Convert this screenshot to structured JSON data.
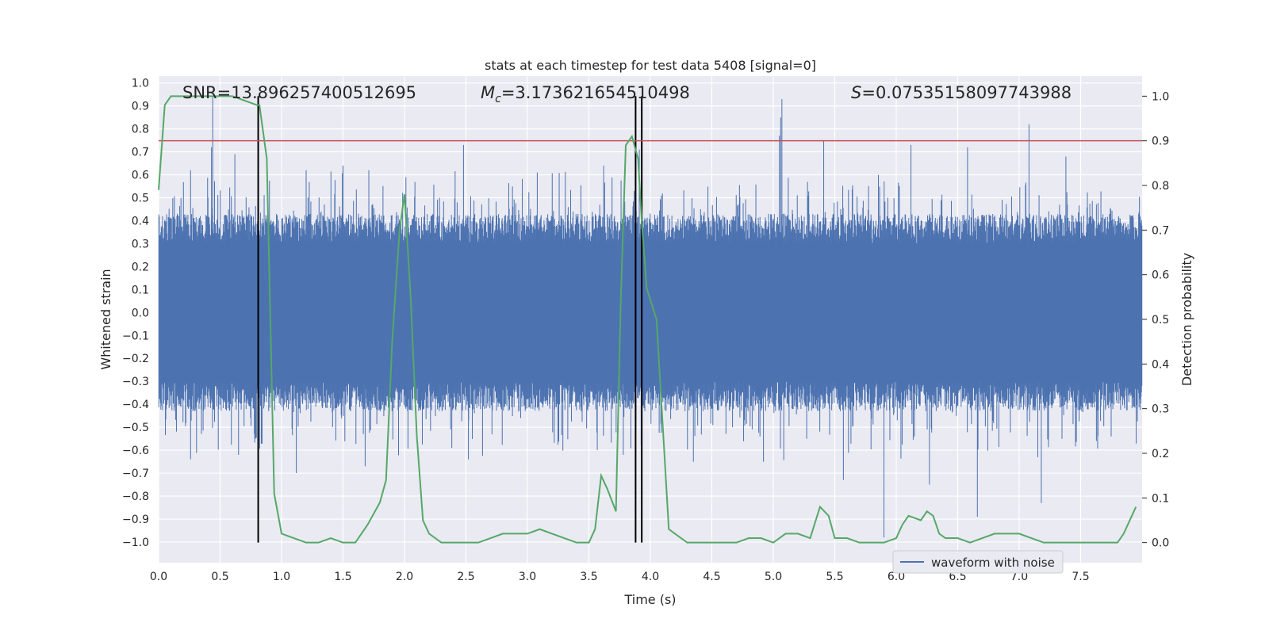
{
  "chart_data": {
    "type": "line",
    "title": "stats at each timestep for test data 5408 [signal=0]",
    "xlabel": "Time (s)",
    "ylabel": "Whitened strain",
    "y2label": "Detection probability",
    "xlim": [
      0,
      8
    ],
    "ylim": [
      -1.09,
      1.03
    ],
    "y2lim": [
      -0.045,
      1.045
    ],
    "xticks": [
      "0.0",
      "0.5",
      "1.0",
      "1.5",
      "2.0",
      "2.5",
      "3.0",
      "3.5",
      "4.0",
      "4.5",
      "5.0",
      "5.5",
      "6.0",
      "6.5",
      "7.0",
      "7.5"
    ],
    "yticks": [
      "1.0",
      "0.9",
      "0.8",
      "0.7",
      "0.6",
      "0.5",
      "0.4",
      "0.3",
      "0.2",
      "0.1",
      "0.0",
      "-0.1",
      "-0.2",
      "-0.3",
      "-0.4",
      "-0.5",
      "-0.6",
      "-0.7",
      "-0.8",
      "-0.9",
      "-1.0"
    ],
    "y2ticks": [
      "1.0",
      "0.9",
      "0.8",
      "0.7",
      "0.6",
      "0.5",
      "0.4",
      "0.3",
      "0.2",
      "0.1",
      "0.0"
    ],
    "grid": true,
    "legend": {
      "position": "bottom-right",
      "entries": [
        "waveform with noise"
      ]
    },
    "annotations": {
      "snr": "SNR=13.896257400512695",
      "mc": "M",
      "mc_sub": "c",
      "mc_value": "=3.173621654510498",
      "s": "S",
      "s_value": "=0.07535158097743988"
    },
    "threshold": {
      "value": 0.9,
      "axis": "y2",
      "color": "#c44e52"
    },
    "vlines": [
      0.81,
      3.88,
      3.93
    ],
    "series": [
      {
        "name": "waveform with noise",
        "axis": "y",
        "color": "#4c72b0",
        "samples": 2400,
        "core_amplitude": 0.3,
        "spikes": [
          {
            "x": 0.44,
            "y": 0.94
          },
          {
            "x": 0.43,
            "y": 0.72
          },
          {
            "x": 0.26,
            "y": 0.62
          },
          {
            "x": 0.62,
            "y": 0.69
          },
          {
            "x": 0.81,
            "y": 0.52
          },
          {
            "x": 1.2,
            "y": 0.62
          },
          {
            "x": 1.5,
            "y": 0.64
          },
          {
            "x": 1.71,
            "y": 0.62
          },
          {
            "x": 2.48,
            "y": 0.73
          },
          {
            "x": 3.08,
            "y": 0.61
          },
          {
            "x": 3.62,
            "y": 0.64
          },
          {
            "x": 3.91,
            "y": 0.71
          },
          {
            "x": 5.05,
            "y": 0.77
          },
          {
            "x": 5.07,
            "y": 0.93
          },
          {
            "x": 5.06,
            "y": 0.85
          },
          {
            "x": 5.41,
            "y": 0.75
          },
          {
            "x": 6.12,
            "y": 0.73
          },
          {
            "x": 6.58,
            "y": 0.72
          },
          {
            "x": 7.08,
            "y": 0.82
          },
          {
            "x": 7.38,
            "y": 0.68
          },
          {
            "x": 0.26,
            "y": -0.64
          },
          {
            "x": 0.65,
            "y": -0.62
          },
          {
            "x": 1.12,
            "y": -0.7
          },
          {
            "x": 1.68,
            "y": -0.67
          },
          {
            "x": 2.52,
            "y": -0.64
          },
          {
            "x": 3.78,
            "y": -0.62
          },
          {
            "x": 5.57,
            "y": -0.73
          },
          {
            "x": 5.9,
            "y": -0.98
          },
          {
            "x": 6.27,
            "y": -0.75
          },
          {
            "x": 6.66,
            "y": -0.89
          },
          {
            "x": 7.18,
            "y": -0.83
          },
          {
            "x": 4.35,
            "y": -0.65
          },
          {
            "x": 4.92,
            "y": -0.65
          }
        ]
      },
      {
        "name": "",
        "axis": "y2",
        "color": "#55a868",
        "x": [
          0.0,
          0.05,
          0.1,
          0.2,
          0.3,
          0.4,
          0.5,
          0.6,
          0.7,
          0.8,
          0.82,
          0.88,
          0.94,
          1.0,
          1.1,
          1.2,
          1.3,
          1.4,
          1.5,
          1.6,
          1.7,
          1.8,
          1.85,
          1.9,
          1.96,
          2.0,
          2.05,
          2.1,
          2.15,
          2.2,
          2.3,
          2.4,
          2.5,
          2.6,
          2.7,
          2.8,
          2.9,
          3.0,
          3.1,
          3.2,
          3.3,
          3.4,
          3.5,
          3.55,
          3.6,
          3.65,
          3.72,
          3.76,
          3.8,
          3.85,
          3.9,
          3.93,
          3.97,
          4.05,
          4.15,
          4.2,
          4.25,
          4.3,
          4.4,
          4.5,
          4.6,
          4.7,
          4.8,
          4.9,
          5.0,
          5.1,
          5.2,
          5.3,
          5.38,
          5.45,
          5.5,
          5.55,
          5.6,
          5.7,
          5.8,
          5.9,
          6.0,
          6.05,
          6.1,
          6.2,
          6.25,
          6.3,
          6.35,
          6.4,
          6.5,
          6.6,
          6.7,
          6.8,
          6.9,
          7.0,
          7.1,
          7.2,
          7.3,
          7.4,
          7.5,
          7.6,
          7.7,
          7.8,
          7.85,
          7.95
        ],
        "y": [
          0.79,
          0.98,
          1.0,
          1.0,
          1.0,
          1.0,
          1.0,
          1.0,
          0.99,
          0.98,
          0.98,
          0.86,
          0.11,
          0.02,
          0.01,
          0.0,
          0.0,
          0.01,
          0.0,
          0.0,
          0.04,
          0.09,
          0.14,
          0.45,
          0.7,
          0.78,
          0.55,
          0.24,
          0.05,
          0.02,
          0.0,
          0.0,
          0.0,
          0.0,
          0.01,
          0.02,
          0.02,
          0.02,
          0.03,
          0.02,
          0.01,
          0.0,
          0.0,
          0.03,
          0.15,
          0.12,
          0.07,
          0.55,
          0.89,
          0.91,
          0.86,
          0.72,
          0.57,
          0.5,
          0.03,
          0.02,
          0.01,
          0.0,
          0.0,
          0.0,
          0.0,
          0.0,
          0.01,
          0.01,
          0.0,
          0.02,
          0.02,
          0.01,
          0.08,
          0.06,
          0.01,
          0.01,
          0.01,
          0.0,
          0.0,
          0.0,
          0.01,
          0.04,
          0.06,
          0.05,
          0.07,
          0.06,
          0.02,
          0.01,
          0.01,
          0.0,
          0.01,
          0.02,
          0.02,
          0.02,
          0.01,
          0.0,
          0.0,
          0.0,
          0.0,
          0.0,
          0.0,
          0.0,
          0.02,
          0.08
        ]
      }
    ]
  }
}
